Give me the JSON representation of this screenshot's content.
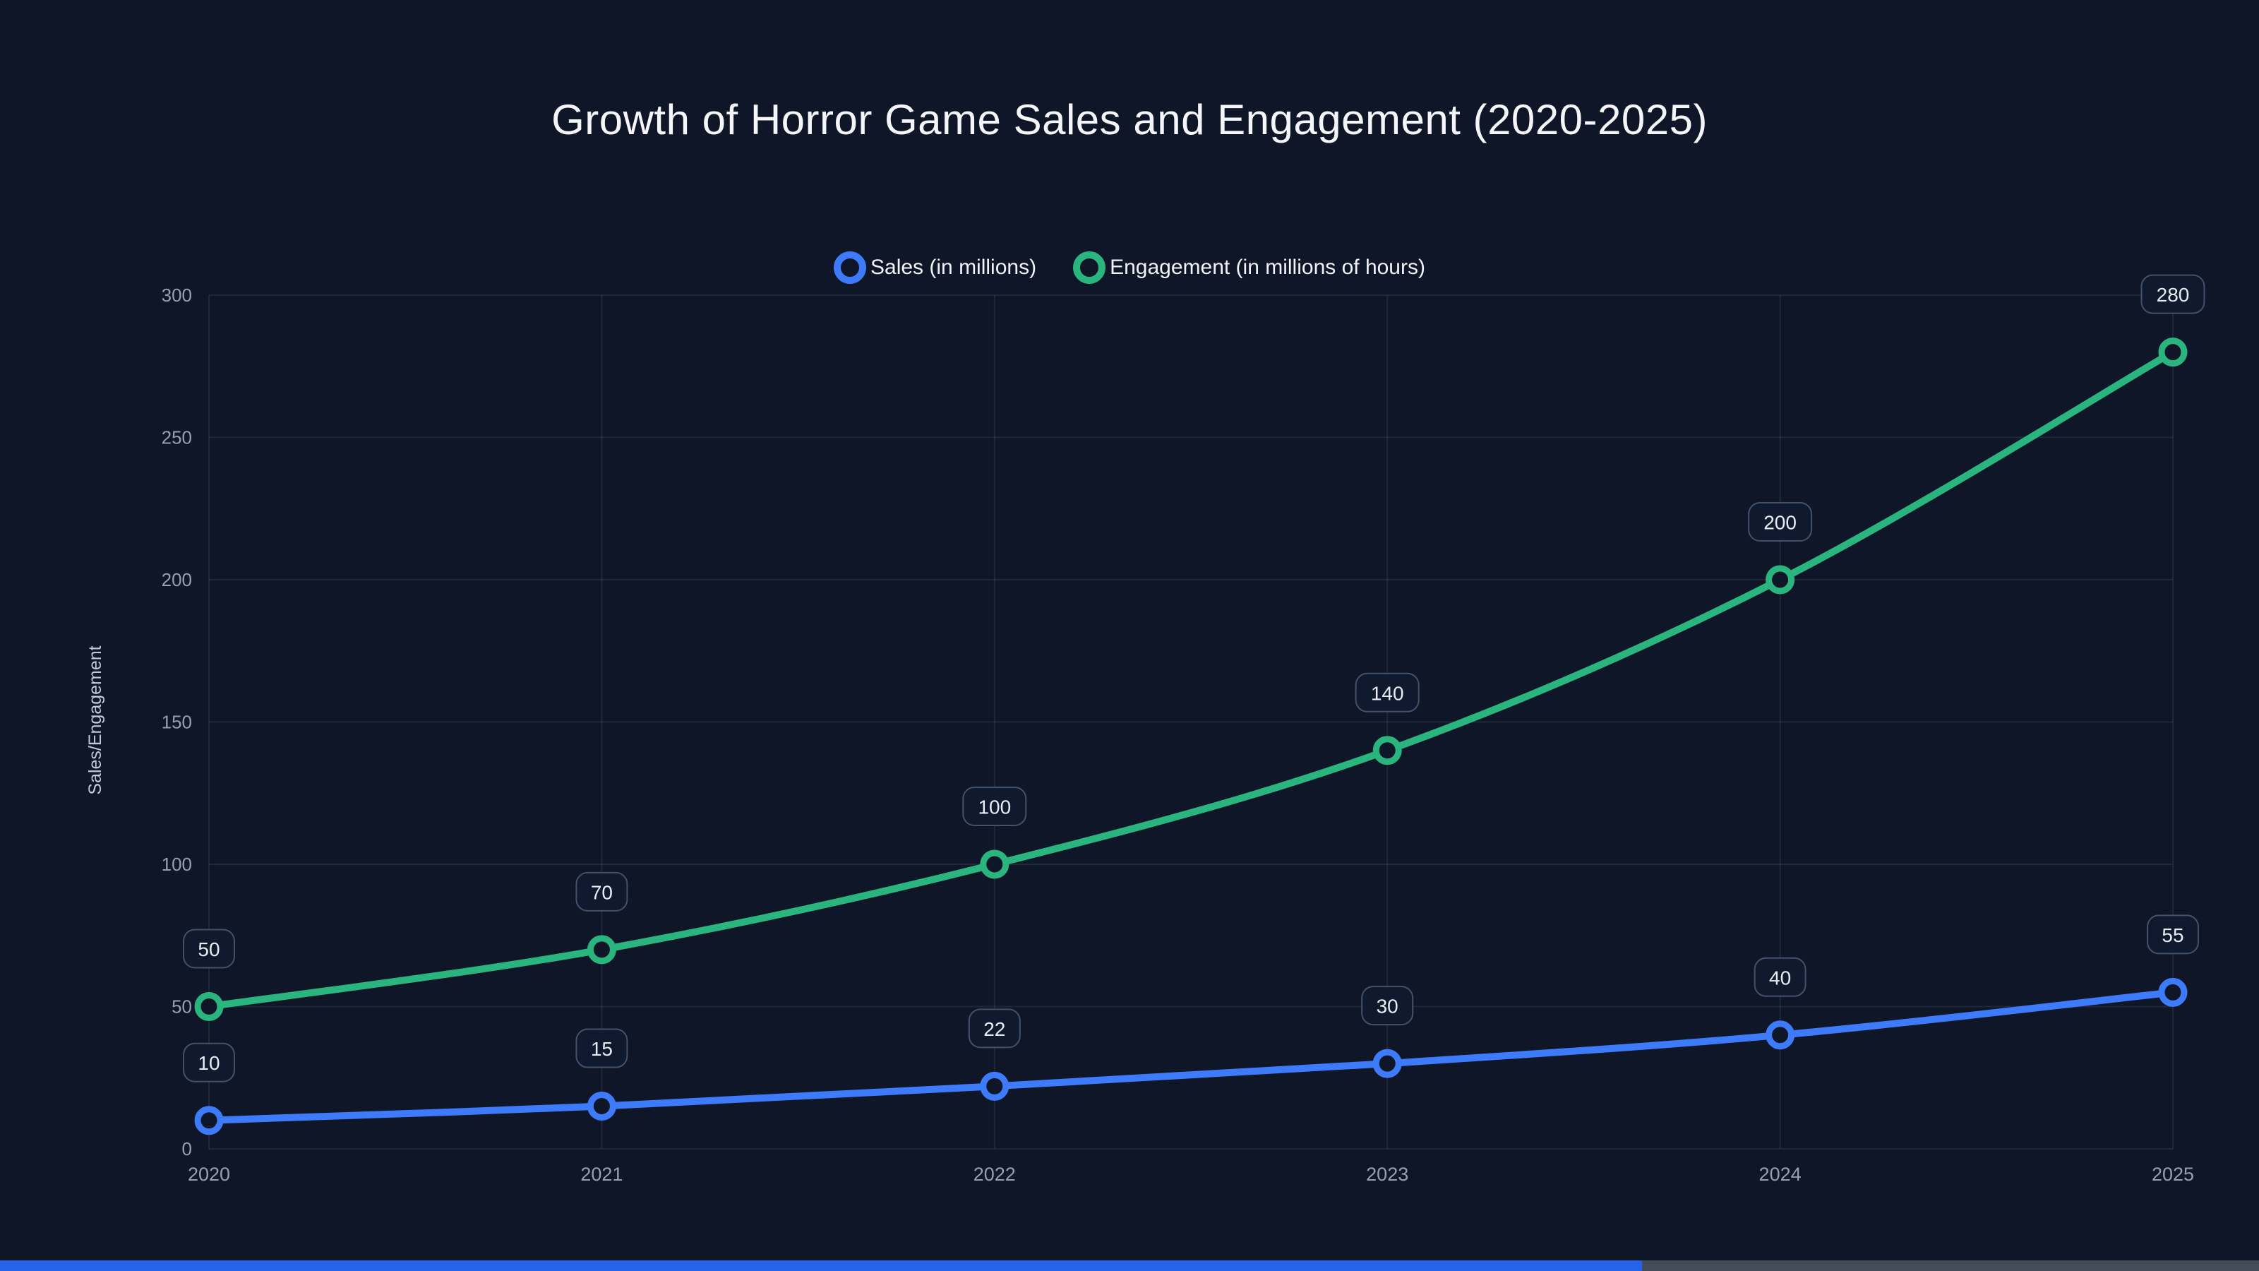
{
  "chart_data": {
    "type": "line",
    "title": "Growth of Horror Game Sales and Engagement (2020-2025)",
    "categories": [
      "2020",
      "2021",
      "2022",
      "2023",
      "2024",
      "2025"
    ],
    "series": [
      {
        "name": "Sales (in millions)",
        "key": "sales",
        "color": "#3e7bfa",
        "values": [
          10,
          15,
          22,
          30,
          40,
          55
        ]
      },
      {
        "name": "Engagement (in millions of hours)",
        "key": "engagement",
        "color": "#2ab57f",
        "values": [
          50,
          70,
          100,
          140,
          200,
          280
        ]
      }
    ],
    "ylabel": "Sales/Engagement",
    "yticks": [
      0,
      50,
      100,
      150,
      200,
      250,
      300
    ],
    "ylim": [
      0,
      300
    ],
    "grid": true,
    "legend_position": "top",
    "point_labels": true,
    "smooth": true
  },
  "colors": {
    "background": "#0e1627",
    "grid": "rgba(148,163,184,0.13)",
    "tick_text": "#96a0b3",
    "axis_title_text": "#c3cbd8",
    "title_text": "#f4f6fa",
    "legend_text": "#f1f3f7",
    "badge_fill": "#0f1a2e",
    "badge_border": "#45506a",
    "badge_text": "#e8ecf2",
    "point_fill": "#0e1627",
    "progress_blue": "#2563eb",
    "progress_gray": "#454c59"
  },
  "bottom_bar": {
    "fraction": 0.727
  }
}
